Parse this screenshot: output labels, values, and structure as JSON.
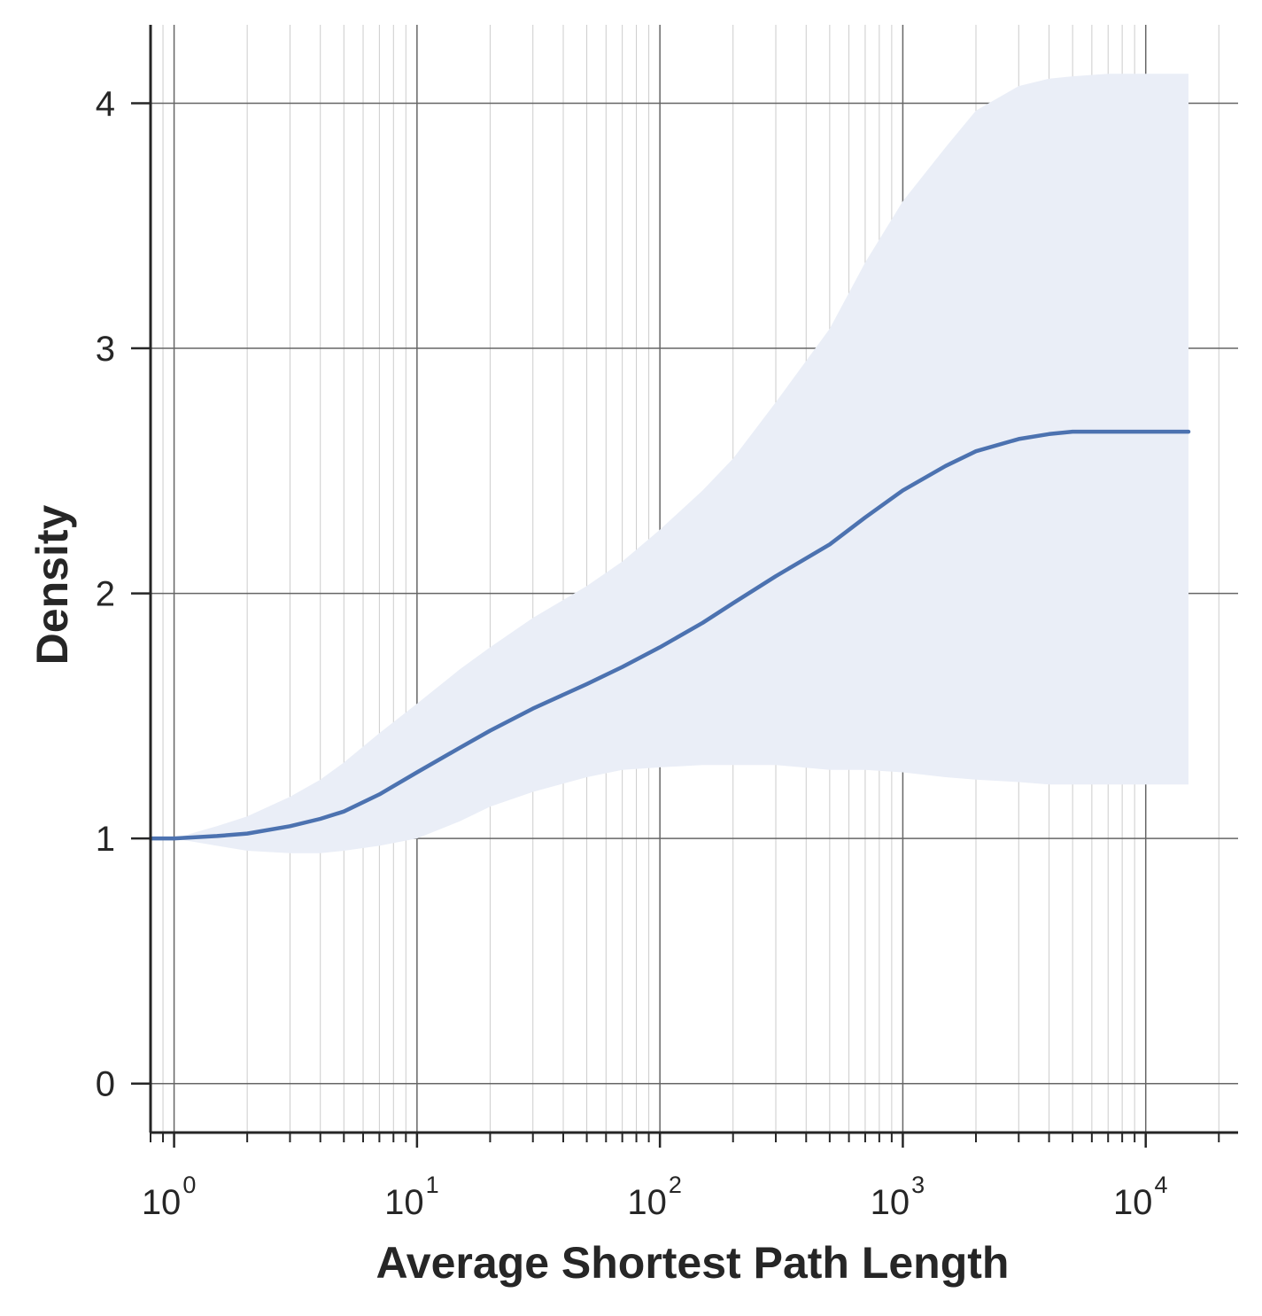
{
  "chart_data": {
    "type": "line",
    "xlabel": "Average Shortest Path Length",
    "ylabel": "Density",
    "xscale": "log",
    "xlim": [
      0.8,
      24000
    ],
    "ylim": [
      -0.2,
      4.32
    ],
    "x_ticks": [
      {
        "value": 1,
        "base": "10",
        "exp": "0"
      },
      {
        "value": 10,
        "base": "10",
        "exp": "1"
      },
      {
        "value": 100,
        "base": "10",
        "exp": "2"
      },
      {
        "value": 1000,
        "base": "10",
        "exp": "3"
      },
      {
        "value": 10000,
        "base": "10",
        "exp": "4"
      }
    ],
    "y_ticks": [
      {
        "value": 0,
        "label": "0"
      },
      {
        "value": 1,
        "label": "1"
      },
      {
        "value": 2,
        "label": "2"
      },
      {
        "value": 3,
        "label": "3"
      },
      {
        "value": 4,
        "label": "4"
      }
    ],
    "grid": "major and minor",
    "colors": {
      "line": "#4c72b0",
      "band": "#eaeef7",
      "grid_major": "#666666",
      "grid_minor": "#cccccc",
      "axis": "#262626"
    },
    "series": [
      {
        "x": [
          0.8,
          1,
          1.5,
          2,
          3,
          4,
          5,
          7,
          10,
          15,
          20,
          30,
          50,
          70,
          100,
          150,
          200,
          300,
          500,
          700,
          1000,
          1500,
          2000,
          3000,
          4000,
          5000,
          7000,
          10000,
          15000
        ],
        "y": [
          1.0,
          1.0,
          1.01,
          1.02,
          1.05,
          1.08,
          1.11,
          1.18,
          1.27,
          1.37,
          1.44,
          1.53,
          1.63,
          1.7,
          1.78,
          1.88,
          1.96,
          2.07,
          2.2,
          2.31,
          2.42,
          2.52,
          2.58,
          2.63,
          2.65,
          2.66,
          2.66,
          2.66,
          2.66
        ],
        "lower": [
          1.0,
          1.0,
          0.97,
          0.95,
          0.94,
          0.94,
          0.95,
          0.97,
          1.0,
          1.07,
          1.13,
          1.19,
          1.25,
          1.28,
          1.29,
          1.3,
          1.3,
          1.3,
          1.28,
          1.28,
          1.27,
          1.25,
          1.24,
          1.23,
          1.22,
          1.22,
          1.22,
          1.22,
          1.22
        ],
        "upper": [
          1.0,
          1.0,
          1.05,
          1.09,
          1.17,
          1.24,
          1.31,
          1.43,
          1.55,
          1.69,
          1.78,
          1.9,
          2.03,
          2.13,
          2.26,
          2.42,
          2.55,
          2.78,
          3.08,
          3.35,
          3.6,
          3.82,
          3.97,
          4.07,
          4.1,
          4.11,
          4.12,
          4.12,
          4.12
        ]
      }
    ]
  }
}
